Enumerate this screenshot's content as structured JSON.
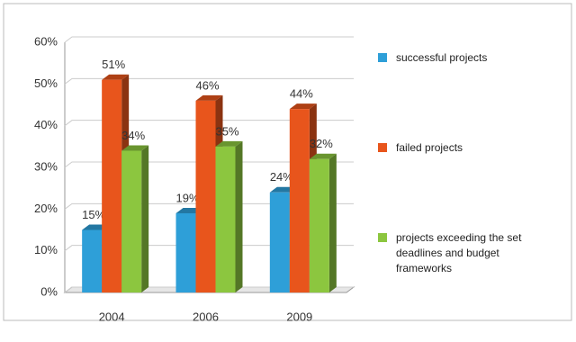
{
  "chart_data": {
    "type": "bar",
    "categories": [
      "2004",
      "2006",
      "2009"
    ],
    "series": [
      {
        "name": "successful projects",
        "color": "#2e9fd8",
        "values": [
          15,
          19,
          24
        ],
        "value_labels": [
          "15%",
          "19%",
          "24%"
        ]
      },
      {
        "name": "failed projects",
        "color": "#e8551c",
        "values": [
          51,
          46,
          44
        ],
        "value_labels": [
          "51%",
          "46%",
          "44%"
        ]
      },
      {
        "name": "projects exceeding the set deadlines and budget frameworks",
        "color": "#8cc63f",
        "values": [
          34,
          35,
          32
        ],
        "value_labels": [
          "34%",
          "35%",
          "32%"
        ]
      }
    ],
    "ylim": [
      0,
      60
    ],
    "yticks": [
      {
        "value": 0,
        "label": "0%"
      },
      {
        "value": 10,
        "label": "10%"
      },
      {
        "value": 20,
        "label": "20%"
      },
      {
        "value": 30,
        "label": "30%"
      },
      {
        "value": 40,
        "label": "40%"
      },
      {
        "value": 50,
        "label": "50%"
      },
      {
        "value": 60,
        "label": "60%"
      }
    ],
    "grid": true,
    "legend": "right"
  }
}
